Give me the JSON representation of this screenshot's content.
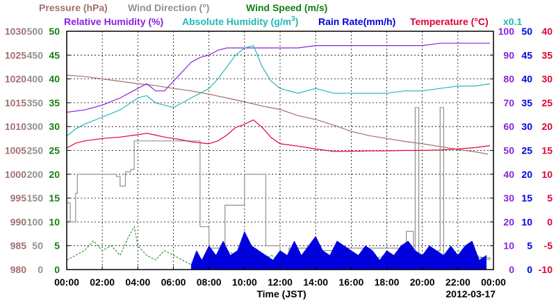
{
  "header": {
    "pressure": "Pressure (hPa)",
    "wind_direction": "Wind Direction (°)",
    "wind_speed": "Wind Speed (m/s)",
    "relative_humidity": "Relative Humidity (%)",
    "absolute_humidity_main": "Absolute Humidity (g/m",
    "absolute_humidity_sup": "3",
    "absolute_humidity_end": ")",
    "rain_rate": "Rain Rate(mm/h)",
    "temperature": "Temperature (°C)",
    "scale_note": "x0.1",
    "xlabel": "Time (JST)",
    "date": "2012-03-17"
  },
  "colors": {
    "pressure": "#a0706e",
    "wind_direction": "#909090",
    "wind_speed": "#108010",
    "relative_humidity": "#8a20e0",
    "absolute_humidity": "#20b8b8",
    "rain_rate": "#0000dd",
    "temperature": "#e00030",
    "grid": "#000000"
  },
  "chart_data": {
    "type": "line",
    "xlabel": "Time (JST)",
    "x_ticks": [
      "00:00",
      "02:00",
      "04:00",
      "06:00",
      "08:00",
      "10:00",
      "12:00",
      "14:00",
      "16:00",
      "18:00",
      "20:00",
      "22:00",
      "00:00"
    ],
    "xlim_hours": [
      0,
      24
    ],
    "grid": true,
    "axes": {
      "pressure": {
        "ticks": [
          "1030",
          "1025",
          "1020",
          "1015",
          "1010",
          "1005",
          "1000",
          "995",
          "990",
          "985",
          "980"
        ],
        "ylim": [
          980,
          1030
        ]
      },
      "wind_direction": {
        "ticks": [
          "500",
          "450",
          "400",
          "350",
          "300",
          "250",
          "200",
          "150",
          "100",
          "50",
          "0"
        ],
        "ylim": [
          0,
          500
        ]
      },
      "wind_speed": {
        "ticks": [
          "50",
          "45",
          "40",
          "35",
          "30",
          "25",
          "20",
          "15",
          "10",
          "5",
          "0"
        ],
        "ylim": [
          0,
          50
        ]
      },
      "relative_humidity": {
        "ticks": [
          "100",
          "90",
          "80",
          "70",
          "60",
          "50",
          "40",
          "30",
          "20",
          "10",
          "0"
        ],
        "ylim": [
          0,
          100
        ]
      },
      "rain_rate": {
        "ticks": [
          "50",
          "45",
          "40",
          "35",
          "30",
          "25",
          "20",
          "15",
          "10",
          "5",
          "0"
        ],
        "ylim": [
          0,
          50
        ]
      },
      "temperature": {
        "ticks": [
          "40",
          "35",
          "30",
          "25",
          "20",
          "15",
          "10",
          "5",
          "0",
          "-5",
          "-10"
        ],
        "ylim": [
          -10,
          40
        ]
      }
    },
    "series": [
      {
        "name": "Pressure (hPa)",
        "axis": "pressure",
        "style": "line",
        "x": [
          0,
          1,
          2,
          3,
          4,
          5,
          6,
          7,
          8,
          9,
          10,
          11,
          12,
          13,
          14,
          15,
          16,
          17,
          18,
          19,
          20,
          21,
          22,
          23,
          23.7
        ],
        "y": [
          1020.8,
          1020.5,
          1020,
          1019.5,
          1019,
          1018.6,
          1018,
          1017.5,
          1016.8,
          1016,
          1015.2,
          1014.3,
          1013.6,
          1012.3,
          1011.5,
          1010.3,
          1009,
          1008.1,
          1007.5,
          1006.9,
          1006.4,
          1005.8,
          1005.2,
          1004.7,
          1004.2
        ]
      },
      {
        "name": "Wind Direction (°)",
        "axis": "wind_direction",
        "style": "step",
        "x": [
          0,
          0.2,
          0.5,
          0.6,
          1.3,
          2.8,
          3.0,
          3.3,
          3.6,
          3.8,
          4.0,
          4.6,
          5.5,
          6.2,
          7.0,
          7.5,
          8.0,
          8.5,
          8.9,
          9.2,
          9.7,
          10.0,
          10.5,
          11.0,
          11.2,
          12.0,
          12.5,
          14.0,
          15.0,
          16.5,
          17.5,
          18.3,
          18.7,
          19.1,
          19.3,
          19.5,
          19.6,
          19.8,
          20.5,
          20.9,
          21.0,
          21.2,
          22.0,
          23.0,
          23.8
        ],
        "y": [
          140,
          100,
          160,
          200,
          200,
          195,
          175,
          205,
          210,
          270,
          270,
          270,
          270,
          270,
          270,
          90,
          45,
          45,
          135,
          135,
          135,
          200,
          200,
          200,
          50,
          15,
          45,
          40,
          45,
          45,
          45,
          45,
          45,
          80,
          80,
          20,
          340,
          20,
          20,
          40,
          340,
          30,
          30,
          25,
          20
        ]
      },
      {
        "name": "Wind Speed (m/s)",
        "axis": "wind_speed",
        "style": "line",
        "x": [
          0,
          0.5,
          1,
          1.5,
          2,
          2.5,
          3,
          3.5,
          3.8,
          4,
          4.5,
          5,
          5.5,
          6,
          6.5,
          7,
          7.5,
          8,
          8.5,
          9,
          9.5,
          10,
          10.5,
          11,
          11.5,
          12,
          13,
          14,
          15,
          16,
          17,
          18,
          19,
          20,
          21,
          22,
          23,
          23.8
        ],
        "y": [
          2,
          3,
          4,
          6,
          4,
          5,
          3,
          7,
          9,
          5,
          3,
          2,
          4,
          3,
          2,
          1,
          2,
          1.5,
          2,
          4,
          3,
          5,
          4,
          2,
          3,
          2,
          3,
          2,
          3,
          2,
          2,
          3,
          2,
          3,
          2,
          4,
          3,
          2
        ]
      },
      {
        "name": "Relative Humidity (%)",
        "axis": "relative_humidity",
        "style": "line",
        "x": [
          0,
          1,
          2,
          3,
          3.5,
          4,
          4.5,
          5,
          5.5,
          6,
          6.5,
          7,
          7.5,
          8,
          8.5,
          9,
          9.5,
          10,
          10.5,
          11,
          12,
          13,
          14,
          15,
          16,
          17,
          18,
          19,
          20,
          21,
          22,
          23,
          23.8
        ],
        "y": [
          66,
          67,
          69,
          72,
          74,
          76,
          78,
          75,
          75,
          79,
          83,
          87,
          89,
          90,
          92,
          93,
          93,
          93,
          93,
          93,
          93,
          93,
          94,
          94,
          94,
          94,
          94,
          94,
          94,
          95,
          95,
          95,
          95
        ]
      },
      {
        "name": "Absolute Humidity (g/m3)",
        "axis": "relative_humidity",
        "style": "line",
        "x": [
          0,
          0.5,
          1,
          2,
          3,
          4,
          4.5,
          5,
          5.5,
          6,
          6.5,
          7,
          7.5,
          8,
          8.5,
          9,
          9.5,
          10,
          10.5,
          11,
          11.5,
          12,
          13,
          14,
          15,
          16,
          17,
          18,
          19,
          20,
          21,
          22,
          23,
          23.8
        ],
        "y": [
          56,
          59,
          61,
          64,
          67,
          72,
          73,
          70,
          69,
          68,
          70,
          72,
          74,
          76,
          80,
          85,
          90,
          93,
          94,
          85,
          79,
          76,
          74,
          76,
          74,
          74,
          74,
          74,
          75,
          75,
          76,
          77,
          77,
          78
        ]
      },
      {
        "name": "Rain Rate(mm/h)",
        "axis": "rain_rate",
        "style": "area",
        "x": [
          7,
          7.3,
          7.6,
          8,
          8.4,
          8.8,
          9.2,
          9.6,
          10,
          10.4,
          10.8,
          11.2,
          11.6,
          12,
          12.4,
          12.8,
          13.2,
          13.6,
          14,
          14.4,
          14.8,
          15.2,
          15.6,
          16,
          16.4,
          16.8,
          17.2,
          17.6,
          18,
          18.4,
          18.8,
          19.2,
          19.6,
          20,
          20.4,
          20.8,
          21.2,
          21.6,
          22,
          22.4,
          22.8,
          23.2,
          23.6
        ],
        "y": [
          1,
          4,
          2,
          5,
          3,
          6,
          3,
          4,
          8,
          5,
          4,
          3,
          2,
          4,
          3,
          6,
          3,
          5,
          7,
          4,
          3,
          6,
          5,
          4,
          3,
          5,
          4,
          2,
          4,
          3,
          5,
          6,
          4,
          3,
          5,
          4,
          3,
          5,
          3,
          5,
          6,
          2,
          3
        ]
      },
      {
        "name": "Temperature (°C)",
        "axis": "temperature",
        "style": "line",
        "x": [
          0,
          0.5,
          1,
          2,
          3,
          4,
          4.5,
          5,
          5.5,
          6,
          6.5,
          7,
          7.5,
          8,
          8.5,
          9,
          9.5,
          10,
          10.5,
          11,
          11.5,
          12,
          13,
          14,
          15,
          16,
          17,
          18,
          19,
          20,
          21,
          22,
          23,
          23.8
        ],
        "y": [
          15.5,
          16.5,
          17,
          17.5,
          17.8,
          18.3,
          18.6,
          18.2,
          17.8,
          17.5,
          17.2,
          16.8,
          16.6,
          16.4,
          17,
          18.2,
          19.8,
          20.5,
          21.4,
          19.8,
          17.7,
          16.4,
          15.9,
          15.3,
          14.8,
          14.8,
          14.9,
          14.9,
          15,
          15,
          15.1,
          15.3,
          15.6,
          16
        ]
      }
    ]
  }
}
